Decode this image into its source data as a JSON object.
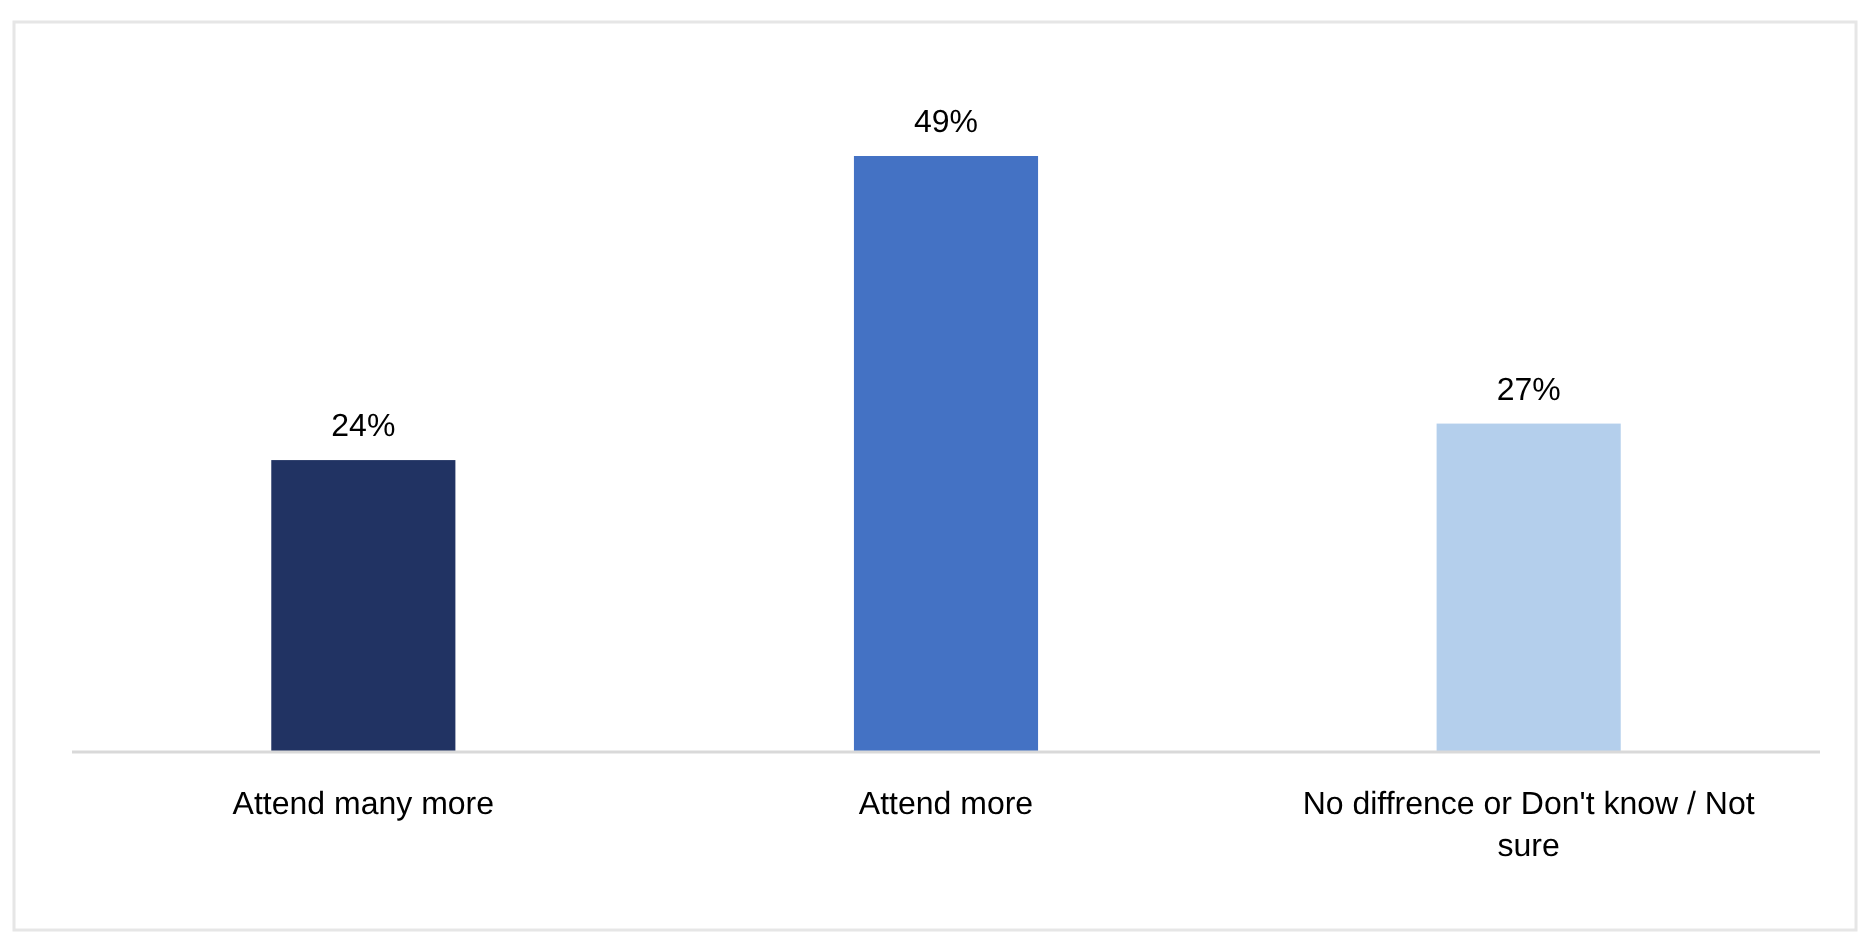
{
  "chart_data": {
    "type": "bar",
    "categories": [
      "Attend many more",
      "Attend more",
      "No diffrence or Don't know / Not sure"
    ],
    "values": [
      24,
      49,
      27
    ],
    "colors": [
      "#213363",
      "#4472c4",
      "#b4cfec"
    ],
    "value_labels": [
      "24%",
      "49%",
      "27%"
    ]
  }
}
